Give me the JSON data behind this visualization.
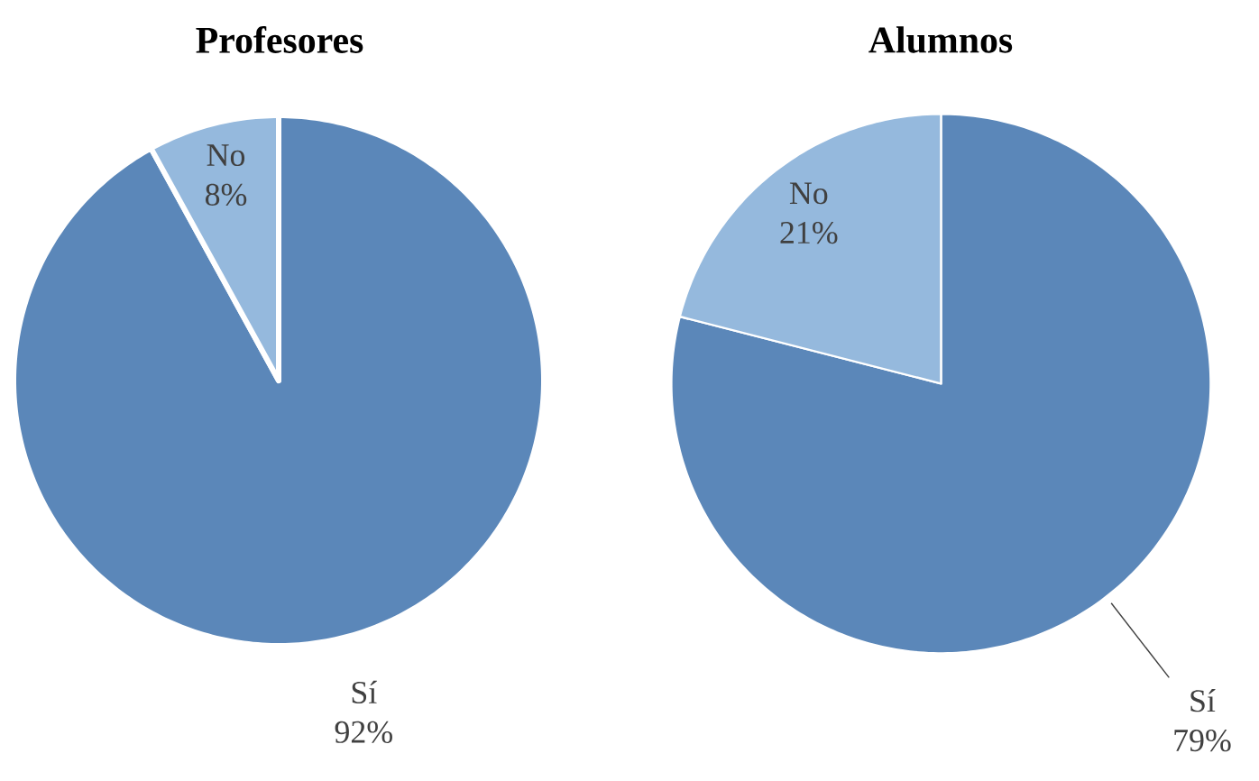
{
  "chart_data": [
    {
      "type": "pie",
      "title": "Profesores",
      "categories": [
        "Sí",
        "No"
      ],
      "values": [
        92,
        8
      ],
      "value_labels": [
        "92%",
        "8%"
      ],
      "colors": [
        "#5b87b9",
        "#95b9dd"
      ]
    },
    {
      "type": "pie",
      "title": "Alumnos",
      "categories": [
        "Sí",
        "No"
      ],
      "values": [
        79,
        21
      ],
      "value_labels": [
        "79%",
        "21%"
      ],
      "colors": [
        "#5b87b9",
        "#95b9dd"
      ]
    }
  ]
}
